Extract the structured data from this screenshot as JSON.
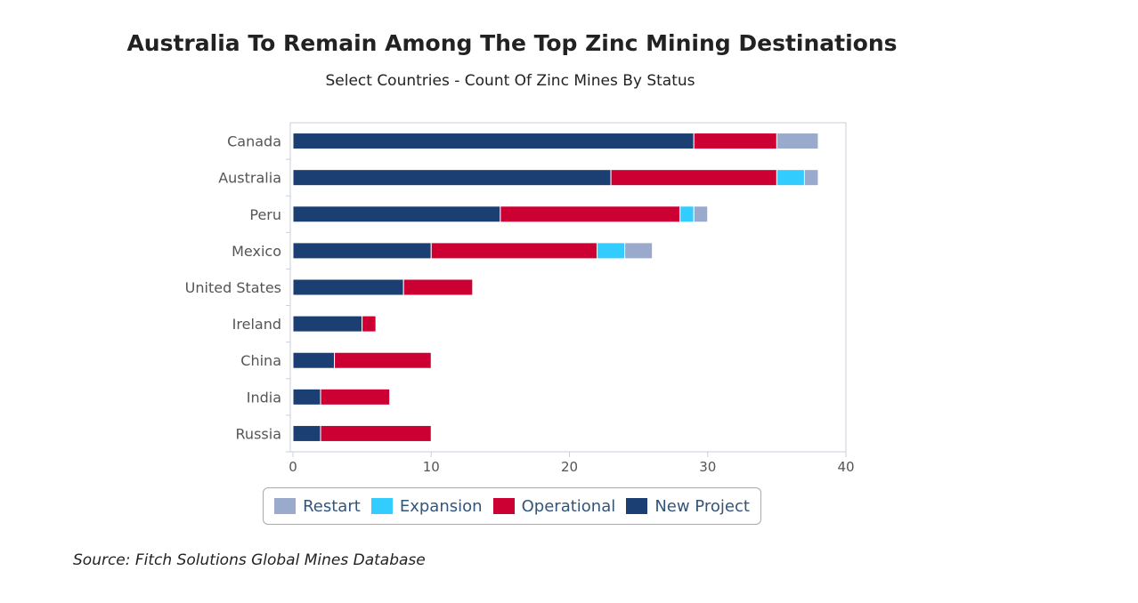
{
  "title": "Australia To Remain Among The Top Zinc Mining Destinations",
  "subtitle": "Select Countries - Count Of Zinc Mines By Status",
  "source": "Source: Fitch Solutions Global Mines Database",
  "chart_data": {
    "type": "bar",
    "orientation": "horizontal",
    "stacked": true,
    "categories": [
      "Canada",
      "Australia",
      "Peru",
      "Mexico",
      "United States",
      "Ireland",
      "China",
      "India",
      "Russia"
    ],
    "series": [
      {
        "name": "New Project",
        "color": "#1b3f73",
        "values": [
          29,
          23,
          15,
          10,
          8,
          5,
          3,
          2,
          2
        ]
      },
      {
        "name": "Operational",
        "color": "#cc0033",
        "values": [
          6,
          12,
          13,
          12,
          5,
          1,
          7,
          5,
          8
        ]
      },
      {
        "name": "Expansion",
        "color": "#33ccff",
        "values": [
          0,
          2,
          1,
          2,
          0,
          0,
          0,
          0,
          0
        ]
      },
      {
        "name": "Restart",
        "color": "#99aacc",
        "values": [
          3,
          1,
          1,
          2,
          0,
          0,
          0,
          0,
          0
        ]
      }
    ],
    "xlim": [
      0,
      40
    ],
    "xticks": [
      "0",
      "10",
      "20",
      "30",
      "40"
    ],
    "legend_order": [
      "Restart",
      "Expansion",
      "Operational",
      "New Project"
    ],
    "legend_position": "bottom",
    "grid": false
  }
}
